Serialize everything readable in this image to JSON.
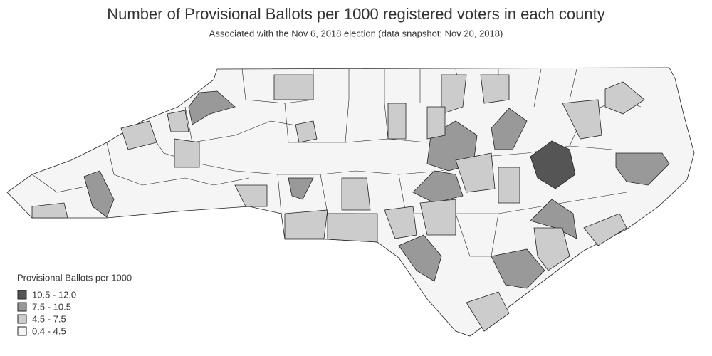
{
  "header": {
    "title": "Number of Provisional Ballots per 1000 registered voters in each county",
    "subtitle": "Associated with the Nov 6, 2018 election (data snapshot: Nov 20, 2018)"
  },
  "legend": {
    "title": "Provisional Ballots per 1000",
    "items": [
      {
        "label": "10.5 - 12.0",
        "color": "#555555"
      },
      {
        "label": "7.5 - 10.5",
        "color": "#999999"
      },
      {
        "label": "4.5 - 7.5",
        "color": "#cccccc"
      },
      {
        "label": "0.4 - 4.5",
        "color": "#f5f5f5"
      }
    ]
  }
}
